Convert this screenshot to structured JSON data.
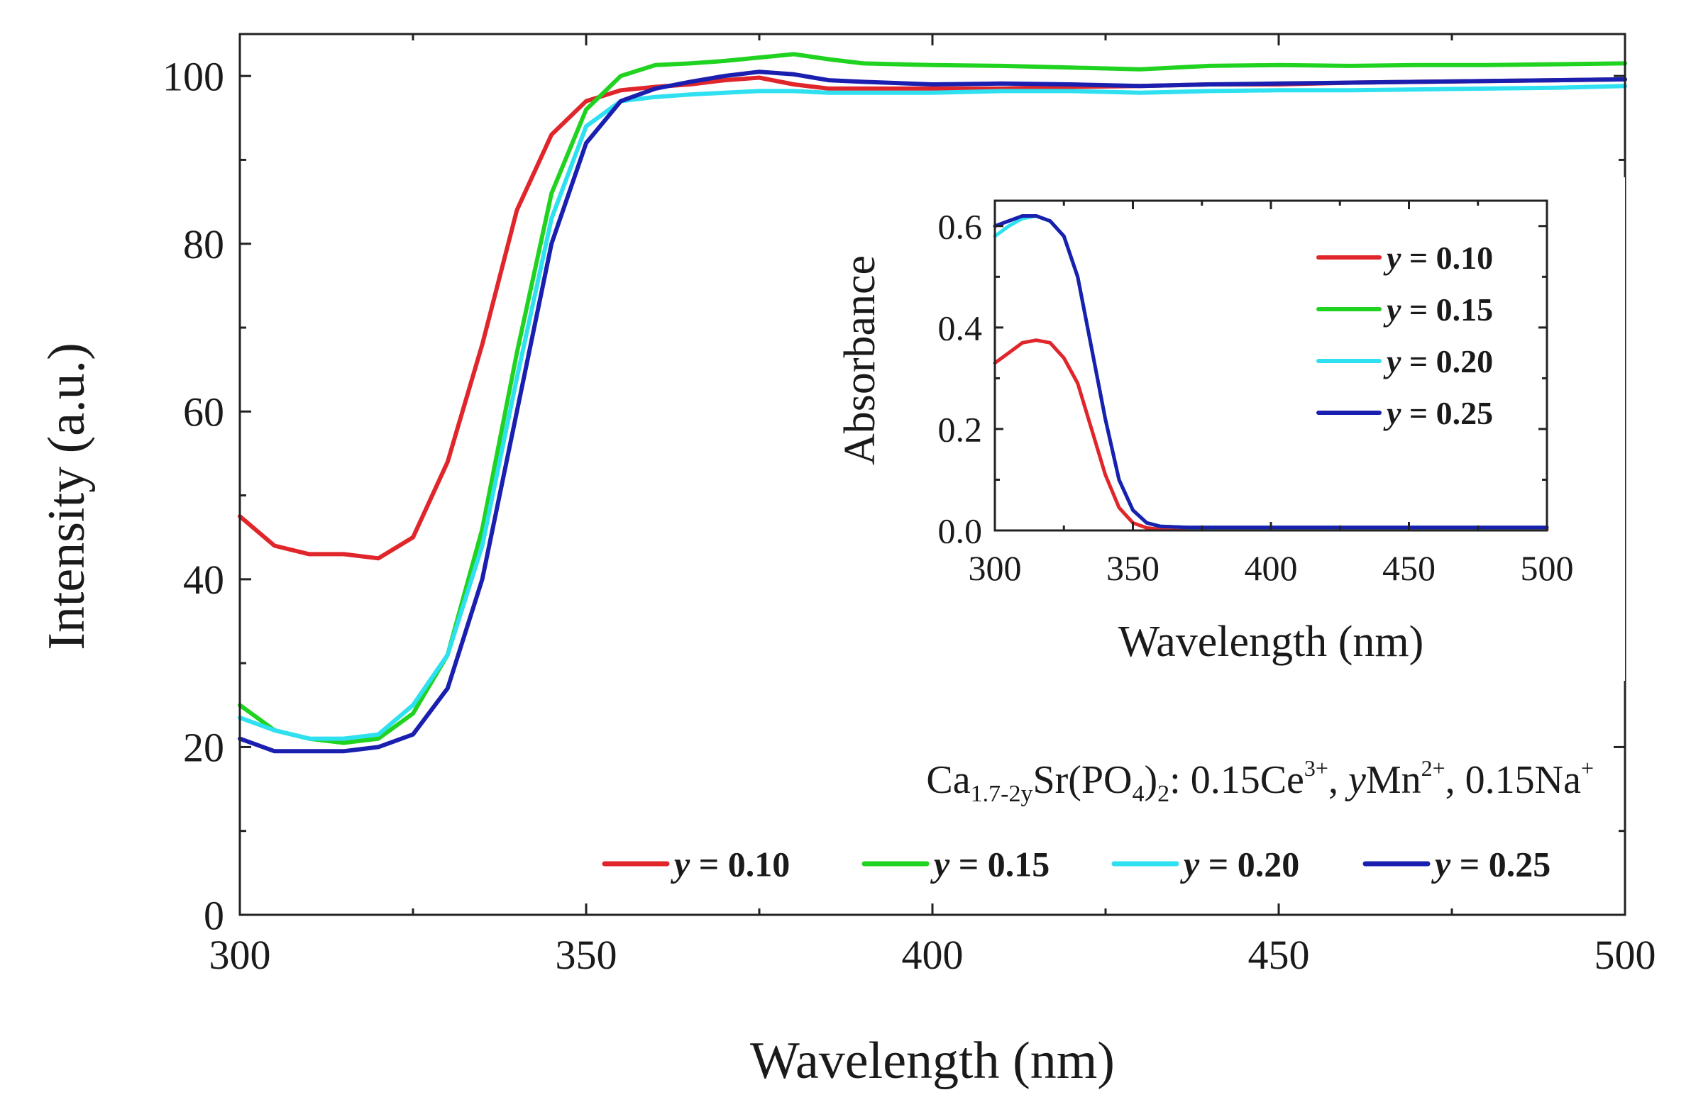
{
  "chart_data": [
    {
      "type": "line",
      "title": "",
      "xlabel": "Wavelength (nm)",
      "ylabel": "Intensity (a.u.)",
      "xlim": [
        300,
        500
      ],
      "ylim": [
        0,
        105
      ],
      "xticks": [
        300,
        350,
        400,
        450,
        500
      ],
      "yticks": [
        0,
        20,
        40,
        60,
        80,
        100
      ],
      "xtick_labels": [
        "300",
        "350",
        "400",
        "450",
        "500"
      ],
      "ytick_labels": [
        "0",
        "20",
        "40",
        "60",
        "80",
        "100"
      ],
      "grid": false,
      "legend": "bottom-right",
      "annotation": {
        "prefix": "Ca",
        "prefix_sub": "1.7-2y",
        "part1": "Sr(PO",
        "part1_sub": "4",
        "part2": ")",
        "part2_sub": "2",
        "part3": ": 0.15Ce",
        "part3_sup": "3+",
        "part4": ", ",
        "part4_italic": "y",
        "part5": "Mn",
        "part5_sup": "2+",
        "part6": ", 0.15Na",
        "part6_sup": "+"
      },
      "x": [
        300,
        305,
        310,
        315,
        320,
        325,
        330,
        335,
        340,
        345,
        350,
        355,
        360,
        365,
        370,
        375,
        380,
        385,
        390,
        400,
        410,
        420,
        430,
        440,
        450,
        460,
        470,
        480,
        490,
        500
      ],
      "series": [
        {
          "name": "y = 0.10",
          "label_var": "y",
          "label_rest": " = 0.10",
          "color": "#e0262b",
          "values": [
            47.5,
            44,
            43,
            43,
            42.5,
            45,
            54,
            68,
            84,
            93,
            97,
            98.3,
            98.7,
            99,
            99.5,
            99.8,
            99,
            98.5,
            98.5,
            98.5,
            98.5,
            98.7,
            98.8,
            99,
            99,
            99.2,
            99.3,
            99.4,
            99.5,
            99.6
          ]
        },
        {
          "name": "y = 0.15",
          "label_var": "y",
          "label_rest": " = 0.15",
          "color": "#21d321",
          "values": [
            25,
            22,
            21,
            20.5,
            21,
            24,
            31,
            46,
            67,
            86,
            96,
            100,
            101.3,
            101.5,
            101.8,
            102.2,
            102.6,
            102,
            101.5,
            101.3,
            101.2,
            101,
            100.8,
            101.2,
            101.3,
            101.2,
            101.3,
            101.3,
            101.4,
            101.5
          ]
        },
        {
          "name": "y = 0.20",
          "label_var": "y",
          "label_rest": " = 0.20",
          "color": "#2ee0f0",
          "values": [
            23.5,
            22,
            21,
            21,
            21.5,
            25,
            31,
            44,
            64,
            83,
            94,
            97,
            97.5,
            97.8,
            98,
            98.2,
            98.2,
            98,
            98,
            98,
            98.2,
            98.2,
            98,
            98.2,
            98.3,
            98.3,
            98.4,
            98.5,
            98.6,
            98.8
          ]
        },
        {
          "name": "y = 0.25",
          "label_var": "y",
          "label_rest": " = 0.25",
          "color": "#1a1fb0",
          "values": [
            21,
            19.5,
            19.5,
            19.5,
            20,
            21.5,
            27,
            40,
            60,
            80,
            92,
            97,
            98.5,
            99.3,
            100,
            100.5,
            100.2,
            99.5,
            99.3,
            99,
            99.1,
            99,
            98.8,
            99,
            99.1,
            99.2,
            99.3,
            99.4,
            99.5,
            99.6
          ]
        }
      ]
    },
    {
      "type": "line",
      "title": "",
      "xlabel": "Wavelength (nm)",
      "ylabel": "Absorbance",
      "xlim": [
        300,
        500
      ],
      "ylim": [
        0,
        0.65
      ],
      "xticks": [
        300,
        350,
        400,
        450,
        500
      ],
      "yticks": [
        0,
        0.2,
        0.4,
        0.6
      ],
      "xtick_labels": [
        "300",
        "350",
        "400",
        "450",
        "500"
      ],
      "ytick_labels": [
        "0.0",
        "0.2",
        "0.4",
        "0.6"
      ],
      "grid": false,
      "legend": "top-right",
      "x": [
        300,
        305,
        310,
        315,
        320,
        325,
        330,
        335,
        340,
        345,
        350,
        355,
        360,
        370,
        380,
        400,
        420,
        440,
        460,
        480,
        500
      ],
      "series": [
        {
          "name": "y = 0.10",
          "label_var": "y",
          "label_rest": " = 0.10",
          "color": "#e0262b",
          "values": [
            0.33,
            0.35,
            0.37,
            0.375,
            0.37,
            0.34,
            0.29,
            0.2,
            0.11,
            0.045,
            0.015,
            0.005,
            0.002,
            0.002,
            0.002,
            0.002,
            0.002,
            0.002,
            0.002,
            0.002,
            0.002
          ]
        },
        {
          "name": "y = 0.15",
          "label_var": "y",
          "label_rest": " = 0.15",
          "color": "#21d321",
          "values": [
            0.6,
            0.61,
            0.62,
            0.62,
            0.61,
            0.58,
            0.5,
            0.36,
            0.22,
            0.1,
            0.04,
            0.015,
            0.008,
            0.006,
            0.006,
            0.006,
            0.006,
            0.006,
            0.006,
            0.006,
            0.006
          ]
        },
        {
          "name": "y = 0.20",
          "label_var": "y",
          "label_rest": " = 0.20",
          "color": "#2ee0f0",
          "values": [
            0.58,
            0.6,
            0.615,
            0.62,
            0.61,
            0.58,
            0.5,
            0.36,
            0.22,
            0.1,
            0.04,
            0.015,
            0.008,
            0.006,
            0.006,
            0.006,
            0.006,
            0.006,
            0.006,
            0.006,
            0.006
          ]
        },
        {
          "name": "y = 0.25",
          "label_var": "y",
          "label_rest": " = 0.25",
          "color": "#1a1fb0",
          "values": [
            0.6,
            0.61,
            0.62,
            0.62,
            0.61,
            0.58,
            0.5,
            0.36,
            0.22,
            0.1,
            0.04,
            0.015,
            0.008,
            0.006,
            0.006,
            0.006,
            0.006,
            0.006,
            0.006,
            0.006,
            0.006
          ]
        }
      ]
    }
  ]
}
